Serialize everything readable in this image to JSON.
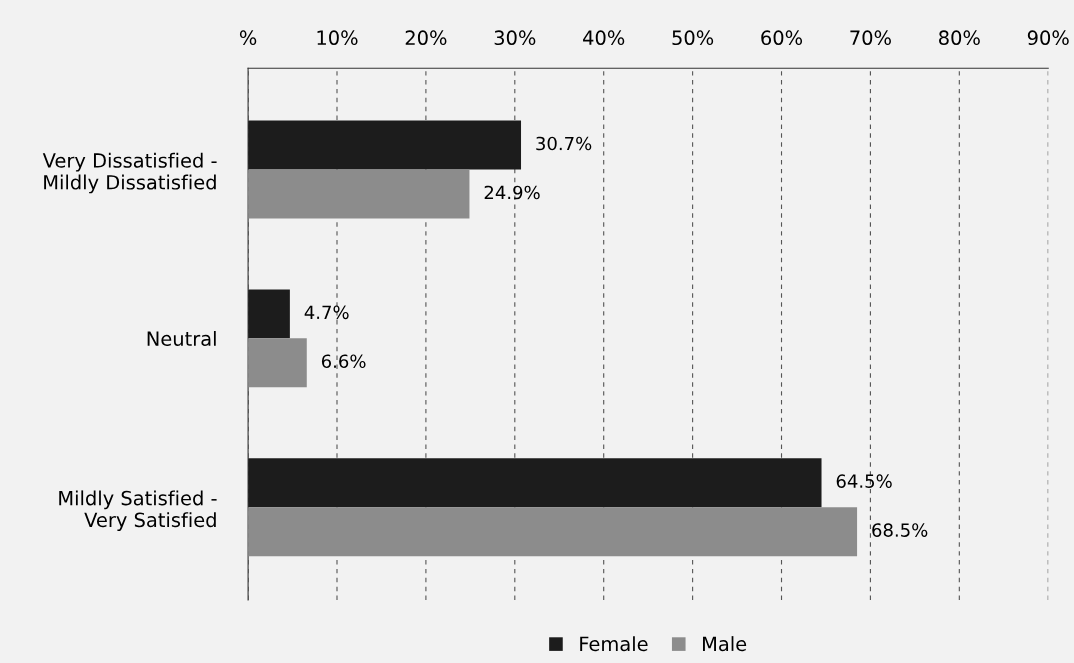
{
  "chart_data": {
    "type": "bar",
    "orientation": "horizontal",
    "categories": [
      "Very Dissatisfied -\nMildly Dissatisfied",
      "Neutral",
      "Mildly Satisfied -\nVery Satisfied"
    ],
    "series": [
      {
        "name": "Female",
        "color": "#1c1c1c",
        "values": [
          30.7,
          4.7,
          64.5
        ],
        "value_labels": [
          "30.7%",
          "4.7%",
          "64.5%"
        ]
      },
      {
        "name": "Male",
        "color": "#8c8c8c",
        "values": [
          24.9,
          6.6,
          68.5
        ],
        "value_labels": [
          "24.9%",
          "6.6%",
          "68.5%"
        ]
      }
    ],
    "xlim": [
      0,
      90
    ],
    "xticks": [
      {
        "value": 0,
        "label": "%"
      },
      {
        "value": 10,
        "label": "10%"
      },
      {
        "value": 20,
        "label": "20%"
      },
      {
        "value": 30,
        "label": "30%"
      },
      {
        "value": 40,
        "label": "40%"
      },
      {
        "value": 50,
        "label": "50%"
      },
      {
        "value": 60,
        "label": "60%"
      },
      {
        "value": 70,
        "label": "70%"
      },
      {
        "value": 80,
        "label": "80%"
      },
      {
        "value": 90,
        "label": "90%"
      }
    ],
    "grid": "x",
    "legend": "bottom"
  }
}
